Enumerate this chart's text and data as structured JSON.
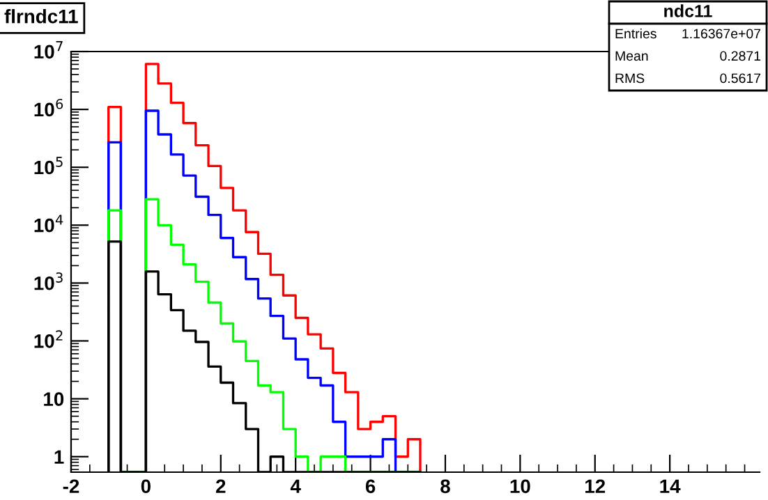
{
  "chart_data": {
    "type": "histogram",
    "title": "flrndc11",
    "annotations": [
      "ndc11",
      "Entries",
      "1.16367e+07",
      "Mean",
      "0.2871",
      "RMS",
      "0.5617"
    ],
    "bins": [
      -1,
      -0.67,
      -0.33,
      0,
      0.33,
      0.67,
      1,
      1.33,
      1.67,
      2,
      2.33,
      2.67,
      3,
      3.33,
      3.67,
      4,
      4.33,
      4.67,
      5,
      5.33,
      5.67,
      6,
      6.33,
      6.67,
      7,
      7.33
    ],
    "series": [
      {
        "color": "#ff0000",
        "values": [
          1100000,
          null,
          null,
          6100000,
          2800000,
          1300000,
          580000,
          240000,
          105000,
          44000,
          18000,
          7600,
          3200,
          1390,
          610,
          250,
          130,
          74,
          28,
          13,
          3,
          4,
          5,
          1,
          2
        ]
      },
      {
        "color": "#0000ff",
        "values": [
          270000,
          null,
          null,
          950000,
          370000,
          166000,
          72000,
          31000,
          15000,
          6000,
          2800,
          1170,
          540,
          270,
          110,
          48,
          23,
          17,
          4,
          1,
          1,
          1,
          2,
          null,
          null
        ]
      },
      {
        "color": "#00ff00",
        "values": [
          18000,
          null,
          null,
          28000,
          10000,
          4600,
          2100,
          1050,
          460,
          200,
          98,
          45,
          17,
          13,
          3,
          1,
          null,
          1,
          1,
          null,
          null,
          null,
          null,
          null,
          null
        ]
      },
      {
        "color": "#000000",
        "values": [
          5200,
          null,
          null,
          1580,
          640,
          340,
          150,
          96,
          36,
          19,
          8.4,
          3,
          null,
          1,
          null,
          null,
          null,
          null,
          null,
          null,
          null,
          null,
          null,
          null,
          null
        ]
      }
    ],
    "log": "y",
    "xlim": [
      -2,
      16.4
    ],
    "ylim": [
      0.54,
      10000000
    ],
    "xticks": [
      -2,
      0,
      2,
      4,
      6,
      8,
      10,
      12,
      14
    ],
    "yticks": [
      1,
      10,
      {
        "value": 100,
        "label": "10$^{2}$"
      },
      {
        "value": 1000,
        "label": "10$^{3}$"
      },
      {
        "value": 10000,
        "label": "10$^{4}$"
      },
      {
        "value": 100000,
        "label": "10$^{5}$"
      },
      {
        "value": 1000000,
        "label": "10$^{6}$"
      },
      {
        "value": 10000000,
        "label": "10$^{7}$"
      }
    ],
    "grid": false,
    "legend": false
  }
}
